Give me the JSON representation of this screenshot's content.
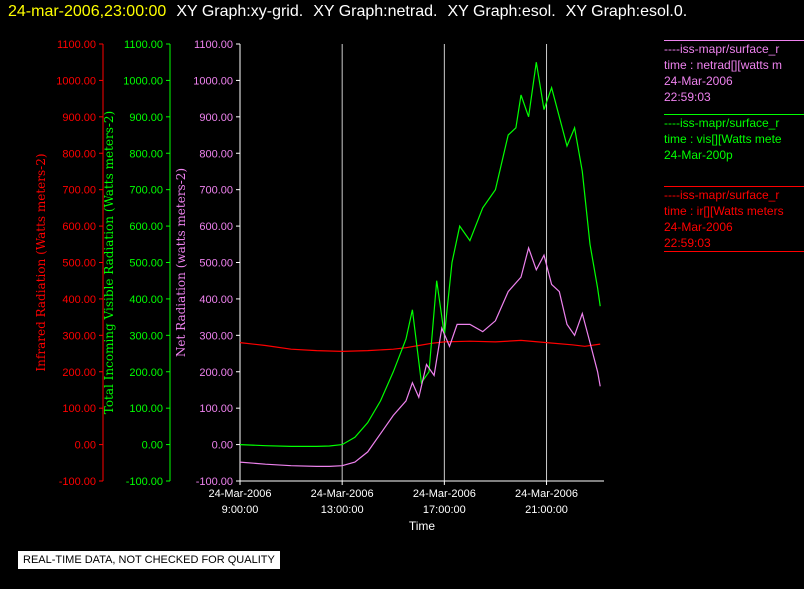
{
  "header": {
    "timestamp": "24-mar-2006,23:00:00",
    "graph_titles": [
      "XY Graph:xy-grid.",
      "XY Graph:netrad.",
      "XY Graph:esol.",
      "XY Graph:esol.0."
    ]
  },
  "notice": "REAL-TIME DATA, NOT CHECKED FOR QUALITY",
  "legend": [
    {
      "color": "#ee82ee",
      "lines": [
        "----iss-mapr/surface_r",
        "time : netrad[][watts m",
        "24-Mar-2006",
        "22:59:03"
      ]
    },
    {
      "color": "#00ff00",
      "lines": [
        "----iss-mapr/surface_r",
        "time : vis[][Watts mete",
        "24-Mar-200p"
      ]
    },
    {
      "color": "#ff0000",
      "lines": [
        "----iss-mapr/surface_r",
        "time : ir[][Watts meters",
        "24-Mar-2006",
        "22:59:03"
      ]
    }
  ],
  "colors": {
    "ir": "#ff0000",
    "vis": "#00ff00",
    "net": "#ee82ee",
    "grid": "#cccccc",
    "axis": "#ffffff"
  },
  "chart_data": {
    "type": "line",
    "xlabel": "Time",
    "x_ticks": [
      {
        "x": 9,
        "lines": [
          "24-Mar-2006",
          "9:00:00"
        ]
      },
      {
        "x": 13,
        "lines": [
          "24-Mar-2006",
          "13:00:00"
        ]
      },
      {
        "x": 17,
        "lines": [
          "24-Mar-2006",
          "17:00:00"
        ]
      },
      {
        "x": 21,
        "lines": [
          "24-Mar-2006",
          "21:00:00"
        ]
      }
    ],
    "xlim": [
      9,
      23.25
    ],
    "ylim": [
      -100,
      1100
    ],
    "y_ticks": [
      -100,
      0,
      100,
      200,
      300,
      400,
      500,
      600,
      700,
      800,
      900,
      1000,
      1100
    ],
    "y_tick_labels": [
      "-100.00",
      "0.00",
      "100.00",
      "200.00",
      "300.00",
      "400.00",
      "500.00",
      "600.00",
      "700.00",
      "800.00",
      "900.00",
      "1000.00",
      "1100.00"
    ],
    "axes": [
      {
        "key": "ir",
        "label": "Infrared Radiation (Watts meters-2)"
      },
      {
        "key": "vis",
        "label": "Total Incoming Visible Radiation (Watts meters-2)"
      },
      {
        "key": "net",
        "label": "Net Radiation (watts meters-2)"
      }
    ],
    "vertical_gridlines_x": [
      13,
      17,
      21
    ],
    "series": [
      {
        "key": "ir",
        "x": [
          9,
          10,
          11,
          12,
          13,
          14,
          15,
          15.5,
          16,
          16.5,
          17,
          18,
          19,
          20,
          21,
          22,
          22.5,
          23.1
        ],
        "y": [
          280,
          272,
          262,
          258,
          256,
          258,
          262,
          266,
          272,
          278,
          282,
          284,
          282,
          286,
          280,
          274,
          270,
          276
        ]
      },
      {
        "key": "vis",
        "x": [
          9,
          10,
          11,
          12,
          12.5,
          13,
          13.5,
          14,
          14.5,
          15,
          15.5,
          15.75,
          16.1,
          16.4,
          16.7,
          17,
          17.3,
          17.6,
          18,
          18.5,
          19,
          19.5,
          19.8,
          20,
          20.3,
          20.6,
          20.9,
          21.2,
          21.5,
          21.8,
          22.1,
          22.4,
          22.7,
          23,
          23.1
        ],
        "y": [
          0,
          -3,
          -5,
          -5,
          -4,
          0,
          20,
          60,
          120,
          200,
          290,
          370,
          170,
          200,
          450,
          300,
          500,
          600,
          560,
          650,
          700,
          850,
          870,
          960,
          900,
          1050,
          920,
          980,
          900,
          820,
          870,
          750,
          550,
          430,
          380
        ]
      },
      {
        "key": "net",
        "x": [
          9,
          10,
          11,
          12,
          12.5,
          13,
          13.5,
          14,
          14.5,
          15,
          15.5,
          15.75,
          16,
          16.3,
          16.6,
          16.9,
          17.2,
          17.5,
          18,
          18.5,
          19,
          19.5,
          20,
          20.3,
          20.6,
          20.9,
          21.2,
          21.5,
          21.8,
          22.1,
          22.4,
          22.7,
          23,
          23.1
        ],
        "y": [
          -48,
          -54,
          -58,
          -60,
          -60,
          -58,
          -48,
          -20,
          30,
          80,
          120,
          170,
          130,
          220,
          190,
          320,
          270,
          330,
          330,
          310,
          340,
          420,
          460,
          540,
          480,
          520,
          440,
          420,
          330,
          300,
          360,
          280,
          200,
          160
        ]
      }
    ]
  }
}
